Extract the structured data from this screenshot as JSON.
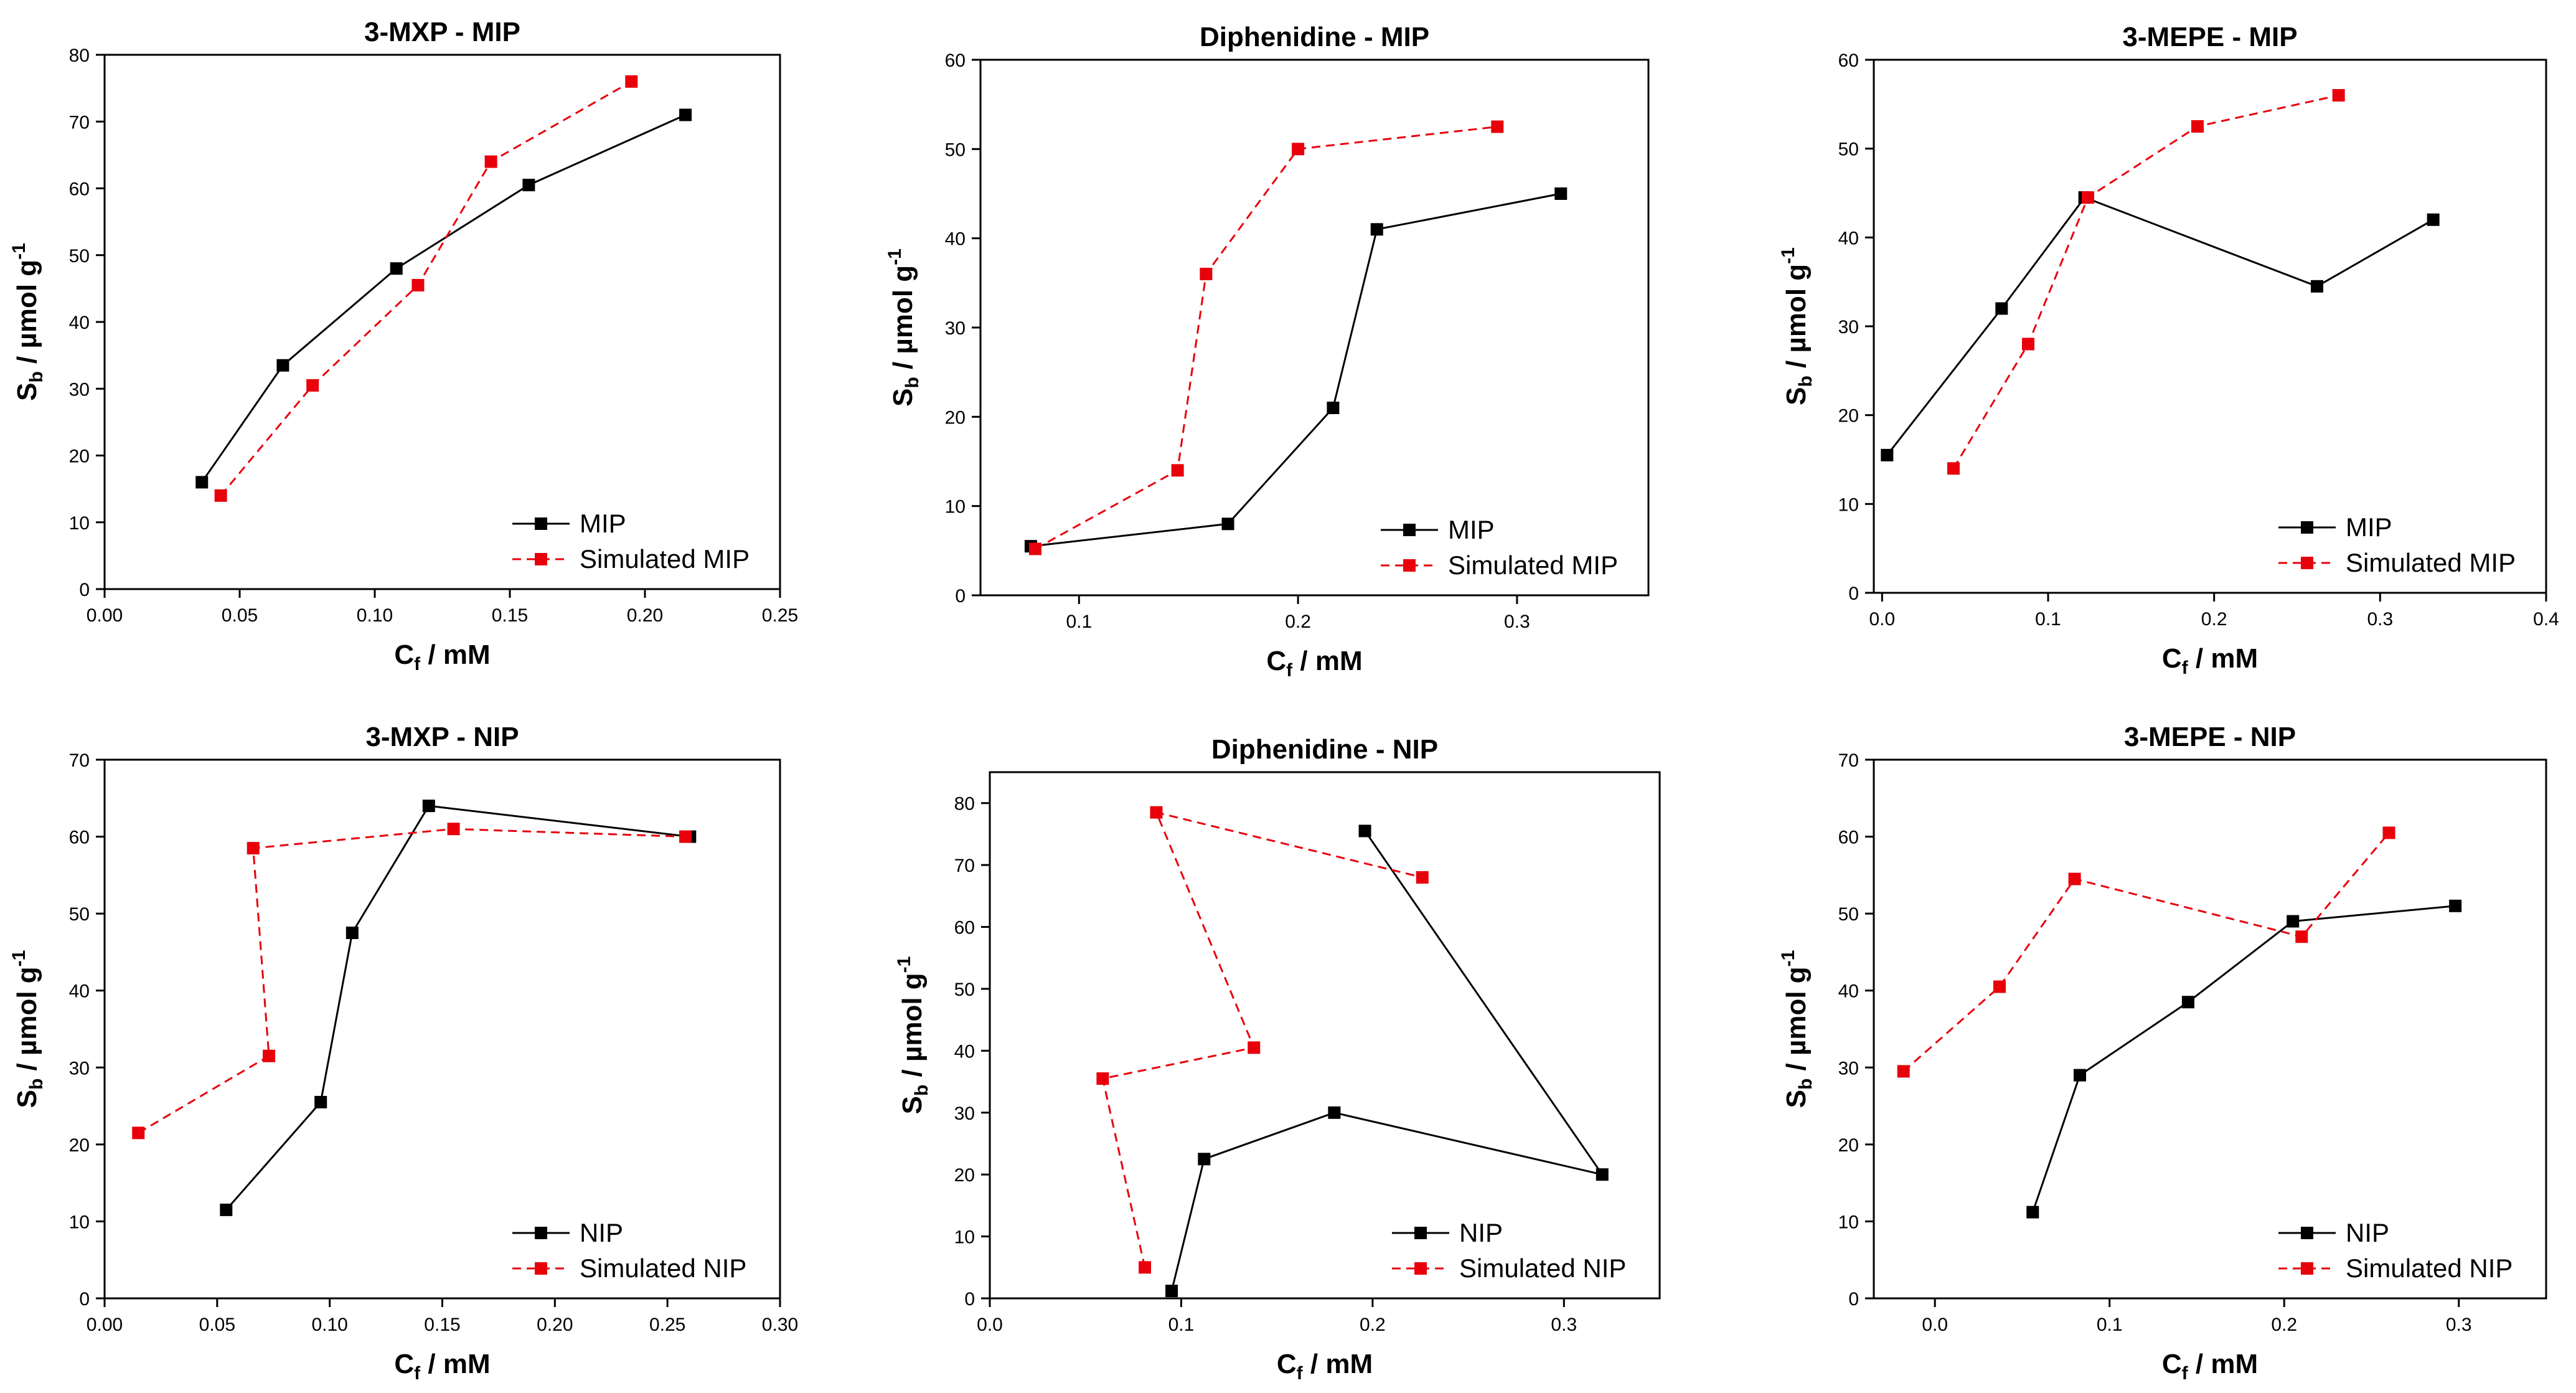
{
  "colors": {
    "mip_series": "#000000",
    "simulated_series": "#e8000b",
    "background": "#ffffff"
  },
  "chart_data": [
    {
      "type": "line",
      "title": "3-MXP - MIP",
      "xlabel": {
        "main": "C",
        "sub": "f",
        "tail": " / mM"
      },
      "ylabel": {
        "main": "S",
        "sub": "b",
        "tail": " / µmol g",
        "sup": "-1"
      },
      "xlim": [
        0,
        0.25
      ],
      "xticks": [
        0,
        0.05,
        0.1,
        0.15,
        0.2,
        0.25
      ],
      "xtick_labels": [
        "0.00",
        "0.05",
        "0.10",
        "0.15",
        "0.20",
        "0.25"
      ],
      "ylim": [
        0,
        80
      ],
      "yticks": [
        0,
        10,
        20,
        30,
        40,
        50,
        60,
        70,
        80
      ],
      "ytick_labels": [
        "0",
        "10",
        "20",
        "30",
        "40",
        "50",
        "60",
        "70",
        "80"
      ],
      "legend": "bottom-right",
      "series": [
        {
          "name": "MIP",
          "style": "solid",
          "x": [
            0.036,
            0.066,
            0.108,
            0.157,
            0.215
          ],
          "y": [
            16,
            33.5,
            48,
            60.5,
            71
          ]
        },
        {
          "name": "Simulated MIP",
          "style": "dashed",
          "x": [
            0.043,
            0.077,
            0.116,
            0.143,
            0.195
          ],
          "y": [
            14,
            30.5,
            45.5,
            64,
            76
          ]
        }
      ]
    },
    {
      "type": "line",
      "title": "Diphenidine - MIP",
      "xlabel": {
        "main": "C",
        "sub": "f",
        "tail": " / mM"
      },
      "ylabel": {
        "main": "S",
        "sub": "b",
        "tail": " / µmol g",
        "sup": "-1"
      },
      "xlim": [
        0.055,
        0.36
      ],
      "xticks": [
        0.1,
        0.2,
        0.3
      ],
      "xtick_labels": [
        "0.1",
        "0.2",
        "0.3"
      ],
      "ylim": [
        0,
        60
      ],
      "yticks": [
        0,
        10,
        20,
        30,
        40,
        50,
        60
      ],
      "ytick_labels": [
        "0",
        "10",
        "20",
        "30",
        "40",
        "50",
        "60"
      ],
      "legend": "bottom-right",
      "series": [
        {
          "name": "MIP",
          "style": "solid",
          "x": [
            0.078,
            0.168,
            0.216,
            0.236,
            0.32
          ],
          "y": [
            5.5,
            8,
            21,
            41,
            45
          ]
        },
        {
          "name": "Simulated MIP",
          "style": "dashed",
          "x": [
            0.08,
            0.145,
            0.158,
            0.2,
            0.291
          ],
          "y": [
            5.2,
            14,
            36,
            50,
            52.5
          ]
        }
      ]
    },
    {
      "type": "line",
      "title": "3-MEPE - MIP",
      "xlabel": {
        "main": "C",
        "sub": "f",
        "tail": " / mM"
      },
      "ylabel": {
        "main": "S",
        "sub": "b",
        "tail": " / µmol g",
        "sup": "-1"
      },
      "xlim": [
        -0.005,
        0.4
      ],
      "xticks": [
        0,
        0.1,
        0.2,
        0.3,
        0.4
      ],
      "xtick_labels": [
        "0.0",
        "0.1",
        "0.2",
        "0.3",
        "0.4"
      ],
      "ylim": [
        0,
        60
      ],
      "yticks": [
        0,
        10,
        20,
        30,
        40,
        50,
        60
      ],
      "ytick_labels": [
        "0",
        "10",
        "20",
        "30",
        "40",
        "50",
        "60"
      ],
      "legend": "bottom-right",
      "series": [
        {
          "name": "MIP",
          "style": "solid",
          "x": [
            0.003,
            0.072,
            0.122,
            0.262,
            0.332
          ],
          "y": [
            15.5,
            32,
            44.5,
            34.5,
            42
          ]
        },
        {
          "name": "Simulated MIP",
          "style": "dashed",
          "x": [
            0.043,
            0.088,
            0.124,
            0.19,
            0.275
          ],
          "y": [
            14,
            28,
            44.5,
            52.5,
            56
          ]
        }
      ]
    },
    {
      "type": "line",
      "title": "3-MXP - NIP",
      "xlabel": {
        "main": "C",
        "sub": "f",
        "tail": " / mM"
      },
      "ylabel": {
        "main": "S",
        "sub": "b",
        "tail": " / µmol g",
        "sup": "-1"
      },
      "xlim": [
        0,
        0.3
      ],
      "xticks": [
        0,
        0.05,
        0.1,
        0.15,
        0.2,
        0.25,
        0.3
      ],
      "xtick_labels": [
        "0.00",
        "0.05",
        "0.10",
        "0.15",
        "0.20",
        "0.25",
        "0.30"
      ],
      "ylim": [
        0,
        70
      ],
      "yticks": [
        0,
        10,
        20,
        30,
        40,
        50,
        60,
        70
      ],
      "ytick_labels": [
        "0",
        "10",
        "20",
        "30",
        "40",
        "50",
        "60",
        "70"
      ],
      "legend": "bottom-right",
      "series": [
        {
          "name": "NIP",
          "style": "solid",
          "x": [
            0.054,
            0.096,
            0.11,
            0.144,
            0.26
          ],
          "y": [
            11.5,
            25.5,
            47.5,
            64,
            60
          ]
        },
        {
          "name": "Simulated NIP",
          "style": "dashed",
          "x": [
            0.015,
            0.073,
            0.066,
            0.155,
            0.258
          ],
          "y": [
            21.5,
            31.5,
            58.5,
            61,
            60
          ]
        }
      ]
    },
    {
      "type": "line",
      "title": "Diphenidine - NIP",
      "xlabel": {
        "main": "C",
        "sub": "f",
        "tail": " / mM"
      },
      "ylabel": {
        "main": "S",
        "sub": "b",
        "tail": " / µmol g",
        "sup": "-1"
      },
      "xlim": [
        0,
        0.35
      ],
      "xticks": [
        0,
        0.1,
        0.2,
        0.3
      ],
      "xtick_labels": [
        "0.0",
        "0.1",
        "0.2",
        "0.3"
      ],
      "ylim": [
        0,
        85
      ],
      "yticks": [
        0,
        10,
        20,
        30,
        40,
        50,
        60,
        70,
        80
      ],
      "ytick_labels": [
        "0",
        "10",
        "20",
        "30",
        "40",
        "50",
        "60",
        "70",
        "80"
      ],
      "legend": "bottom-right",
      "series": [
        {
          "name": "NIP",
          "style": "solid",
          "x": [
            0.095,
            0.112,
            0.18,
            0.32,
            0.196
          ],
          "y": [
            1.2,
            22.5,
            30,
            20,
            75.5
          ]
        },
        {
          "name": "Simulated NIP",
          "style": "dashed",
          "x": [
            0.081,
            0.059,
            0.138,
            0.087,
            0.226
          ],
          "y": [
            5,
            35.5,
            40.5,
            78.5,
            68
          ]
        }
      ]
    },
    {
      "type": "line",
      "title": "3-MEPE - NIP",
      "xlabel": {
        "main": "C",
        "sub": "f",
        "tail": " / mM"
      },
      "ylabel": {
        "main": "S",
        "sub": "b",
        "tail": " / µmol g",
        "sup": "-1"
      },
      "xlim": [
        -0.035,
        0.35
      ],
      "xticks": [
        0,
        0.1,
        0.2,
        0.3
      ],
      "xtick_labels": [
        "0.0",
        "0.1",
        "0.2",
        "0.3"
      ],
      "ylim": [
        0,
        70
      ],
      "yticks": [
        0,
        10,
        20,
        30,
        40,
        50,
        60,
        70
      ],
      "ytick_labels": [
        "0",
        "10",
        "20",
        "30",
        "40",
        "50",
        "60",
        "70"
      ],
      "legend": "bottom-right",
      "series": [
        {
          "name": "NIP",
          "style": "solid",
          "x": [
            0.056,
            0.083,
            0.145,
            0.205,
            0.298
          ],
          "y": [
            11.2,
            29,
            38.5,
            49,
            51
          ]
        },
        {
          "name": "Simulated NIP",
          "style": "dashed",
          "x": [
            -0.018,
            0.037,
            0.08,
            0.21,
            0.26
          ],
          "y": [
            29.5,
            40.5,
            54.5,
            47,
            60.5
          ]
        }
      ]
    }
  ]
}
